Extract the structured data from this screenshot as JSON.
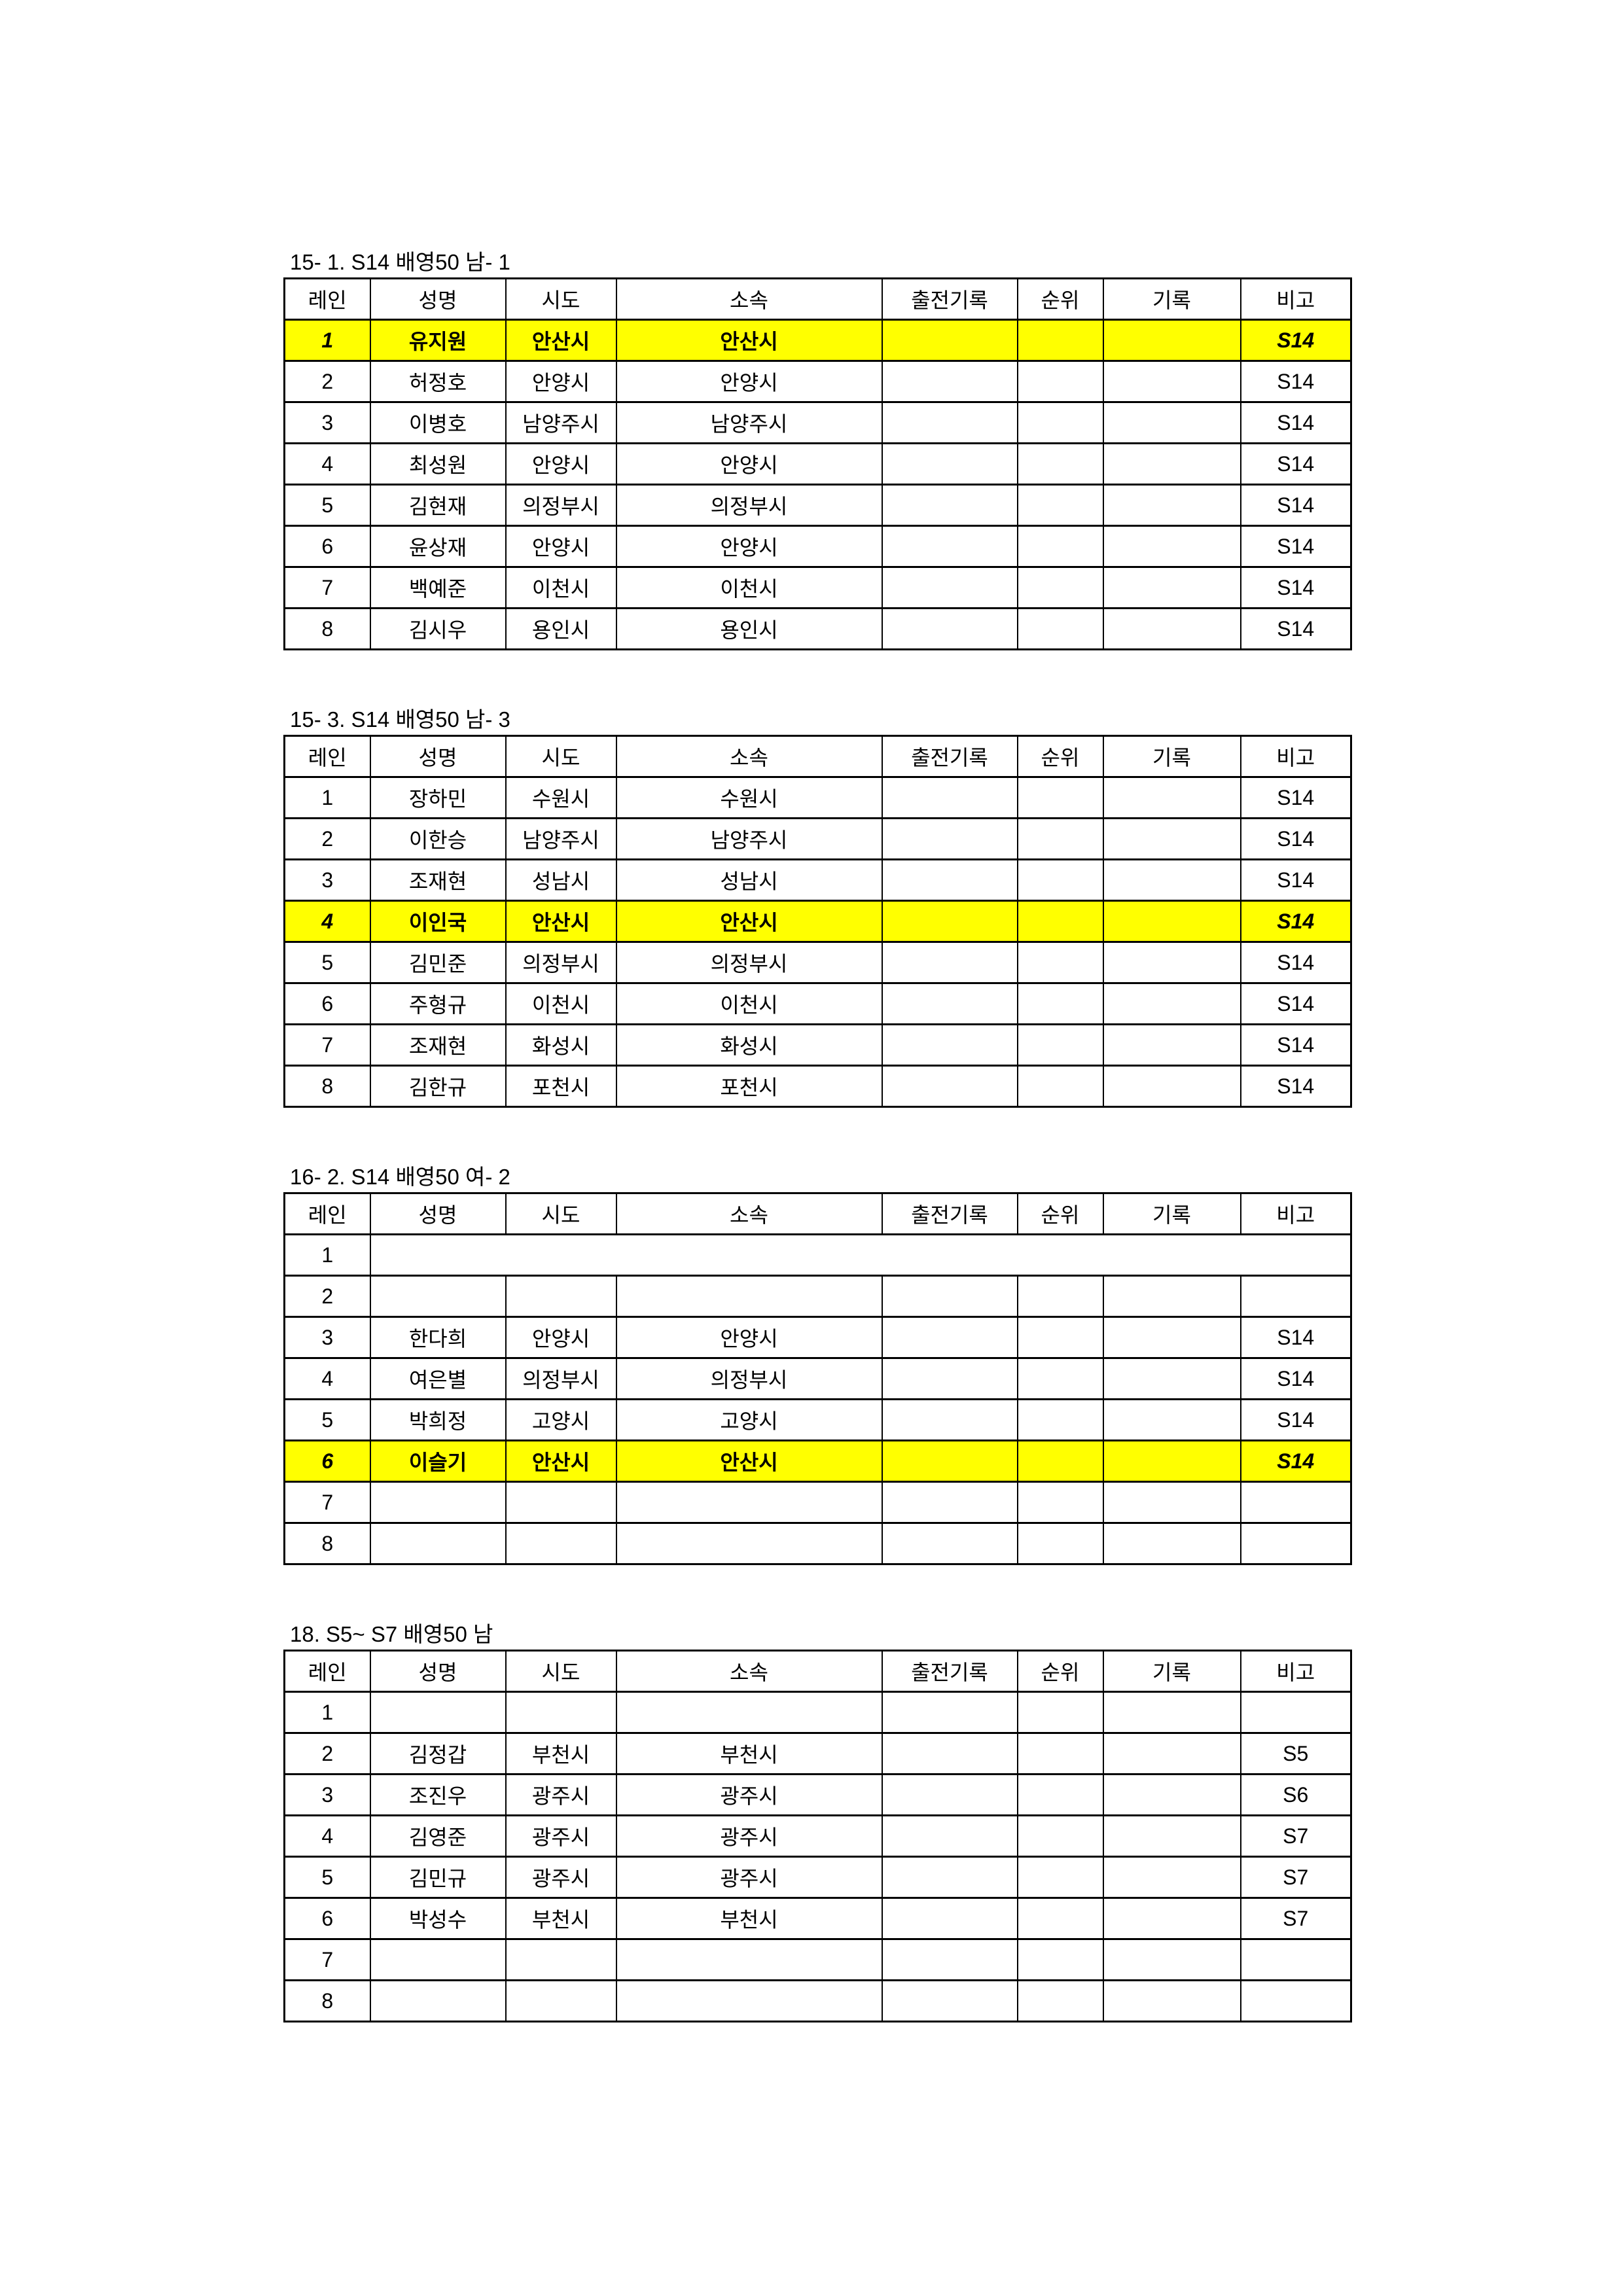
{
  "headers": [
    "레인",
    "성명",
    "시도",
    "소속",
    "출전기록",
    "순위",
    "기록",
    "비고"
  ],
  "highlight_color": "#FFFF00",
  "tables": [
    {
      "title": "15- 1. S14 배영50 남- 1",
      "rows": [
        {
          "lane": "1",
          "name": "유지원",
          "city": "안산시",
          "team": "안산시",
          "entry": "",
          "rank": "",
          "record": "",
          "note": "S14",
          "highlight": true
        },
        {
          "lane": "2",
          "name": "허정호",
          "city": "안양시",
          "team": "안양시",
          "entry": "",
          "rank": "",
          "record": "",
          "note": "S14"
        },
        {
          "lane": "3",
          "name": "이병호",
          "city": "남양주시",
          "team": "남양주시",
          "entry": "",
          "rank": "",
          "record": "",
          "note": "S14"
        },
        {
          "lane": "4",
          "name": "최성원",
          "city": "안양시",
          "team": "안양시",
          "entry": "",
          "rank": "",
          "record": "",
          "note": "S14"
        },
        {
          "lane": "5",
          "name": "김현재",
          "city": "의정부시",
          "team": "의정부시",
          "entry": "",
          "rank": "",
          "record": "",
          "note": "S14"
        },
        {
          "lane": "6",
          "name": "윤상재",
          "city": "안양시",
          "team": "안양시",
          "entry": "",
          "rank": "",
          "record": "",
          "note": "S14"
        },
        {
          "lane": "7",
          "name": "백예준",
          "city": "이천시",
          "team": "이천시",
          "entry": "",
          "rank": "",
          "record": "",
          "note": "S14"
        },
        {
          "lane": "8",
          "name": "김시우",
          "city": "용인시",
          "team": "용인시",
          "entry": "",
          "rank": "",
          "record": "",
          "note": "S14"
        }
      ]
    },
    {
      "title": "15- 3. S14 배영50 남- 3",
      "rows": [
        {
          "lane": "1",
          "name": "장하민",
          "city": "수원시",
          "team": "수원시",
          "entry": "",
          "rank": "",
          "record": "",
          "note": "S14"
        },
        {
          "lane": "2",
          "name": "이한승",
          "city": "남양주시",
          "team": "남양주시",
          "entry": "",
          "rank": "",
          "record": "",
          "note": "S14"
        },
        {
          "lane": "3",
          "name": "조재현",
          "city": "성남시",
          "team": "성남시",
          "entry": "",
          "rank": "",
          "record": "",
          "note": "S14"
        },
        {
          "lane": "4",
          "name": "이인국",
          "city": "안산시",
          "team": "안산시",
          "entry": "",
          "rank": "",
          "record": "",
          "note": "S14",
          "highlight": true
        },
        {
          "lane": "5",
          "name": "김민준",
          "city": "의정부시",
          "team": "의정부시",
          "entry": "",
          "rank": "",
          "record": "",
          "note": "S14"
        },
        {
          "lane": "6",
          "name": "주형규",
          "city": "이천시",
          "team": "이천시",
          "entry": "",
          "rank": "",
          "record": "",
          "note": "S14"
        },
        {
          "lane": "7",
          "name": "조재현",
          "city": "화성시",
          "team": "화성시",
          "entry": "",
          "rank": "",
          "record": "",
          "note": "S14"
        },
        {
          "lane": "8",
          "name": "김한규",
          "city": "포천시",
          "team": "포천시",
          "entry": "",
          "rank": "",
          "record": "",
          "note": "S14"
        }
      ]
    },
    {
      "title": "16- 2. S14 배영50 여- 2",
      "rows": [
        {
          "lane": "1",
          "merged": true
        },
        {
          "lane": "2",
          "name": "",
          "city": "",
          "team": "",
          "entry": "",
          "rank": "",
          "record": "",
          "note": ""
        },
        {
          "lane": "3",
          "name": "한다희",
          "city": "안양시",
          "team": "안양시",
          "entry": "",
          "rank": "",
          "record": "",
          "note": "S14"
        },
        {
          "lane": "4",
          "name": "여은별",
          "city": "의정부시",
          "team": "의정부시",
          "entry": "",
          "rank": "",
          "record": "",
          "note": "S14"
        },
        {
          "lane": "5",
          "name": "박희정",
          "city": "고양시",
          "team": "고양시",
          "entry": "",
          "rank": "",
          "record": "",
          "note": "S14"
        },
        {
          "lane": "6",
          "name": "이슬기",
          "city": "안산시",
          "team": "안산시",
          "entry": "",
          "rank": "",
          "record": "",
          "note": "S14",
          "highlight": true
        },
        {
          "lane": "7",
          "name": "",
          "city": "",
          "team": "",
          "entry": "",
          "rank": "",
          "record": "",
          "note": ""
        },
        {
          "lane": "8",
          "name": "",
          "city": "",
          "team": "",
          "entry": "",
          "rank": "",
          "record": "",
          "note": ""
        }
      ]
    },
    {
      "title": "18. S5~ S7 배영50 남",
      "rows": [
        {
          "lane": "1",
          "name": "",
          "city": "",
          "team": "",
          "entry": "",
          "rank": "",
          "record": "",
          "note": ""
        },
        {
          "lane": "2",
          "name": "김정갑",
          "city": "부천시",
          "team": "부천시",
          "entry": "",
          "rank": "",
          "record": "",
          "note": "S5"
        },
        {
          "lane": "3",
          "name": "조진우",
          "city": "광주시",
          "team": "광주시",
          "entry": "",
          "rank": "",
          "record": "",
          "note": "S6"
        },
        {
          "lane": "4",
          "name": "김영준",
          "city": "광주시",
          "team": "광주시",
          "entry": "",
          "rank": "",
          "record": "",
          "note": "S7"
        },
        {
          "lane": "5",
          "name": "김민규",
          "city": "광주시",
          "team": "광주시",
          "entry": "",
          "rank": "",
          "record": "",
          "note": "S7"
        },
        {
          "lane": "6",
          "name": "박성수",
          "city": "부천시",
          "team": "부천시",
          "entry": "",
          "rank": "",
          "record": "",
          "note": "S7"
        },
        {
          "lane": "7",
          "name": "",
          "city": "",
          "team": "",
          "entry": "",
          "rank": "",
          "record": "",
          "note": ""
        },
        {
          "lane": "8",
          "name": "",
          "city": "",
          "team": "",
          "entry": "",
          "rank": "",
          "record": "",
          "note": ""
        }
      ]
    }
  ]
}
